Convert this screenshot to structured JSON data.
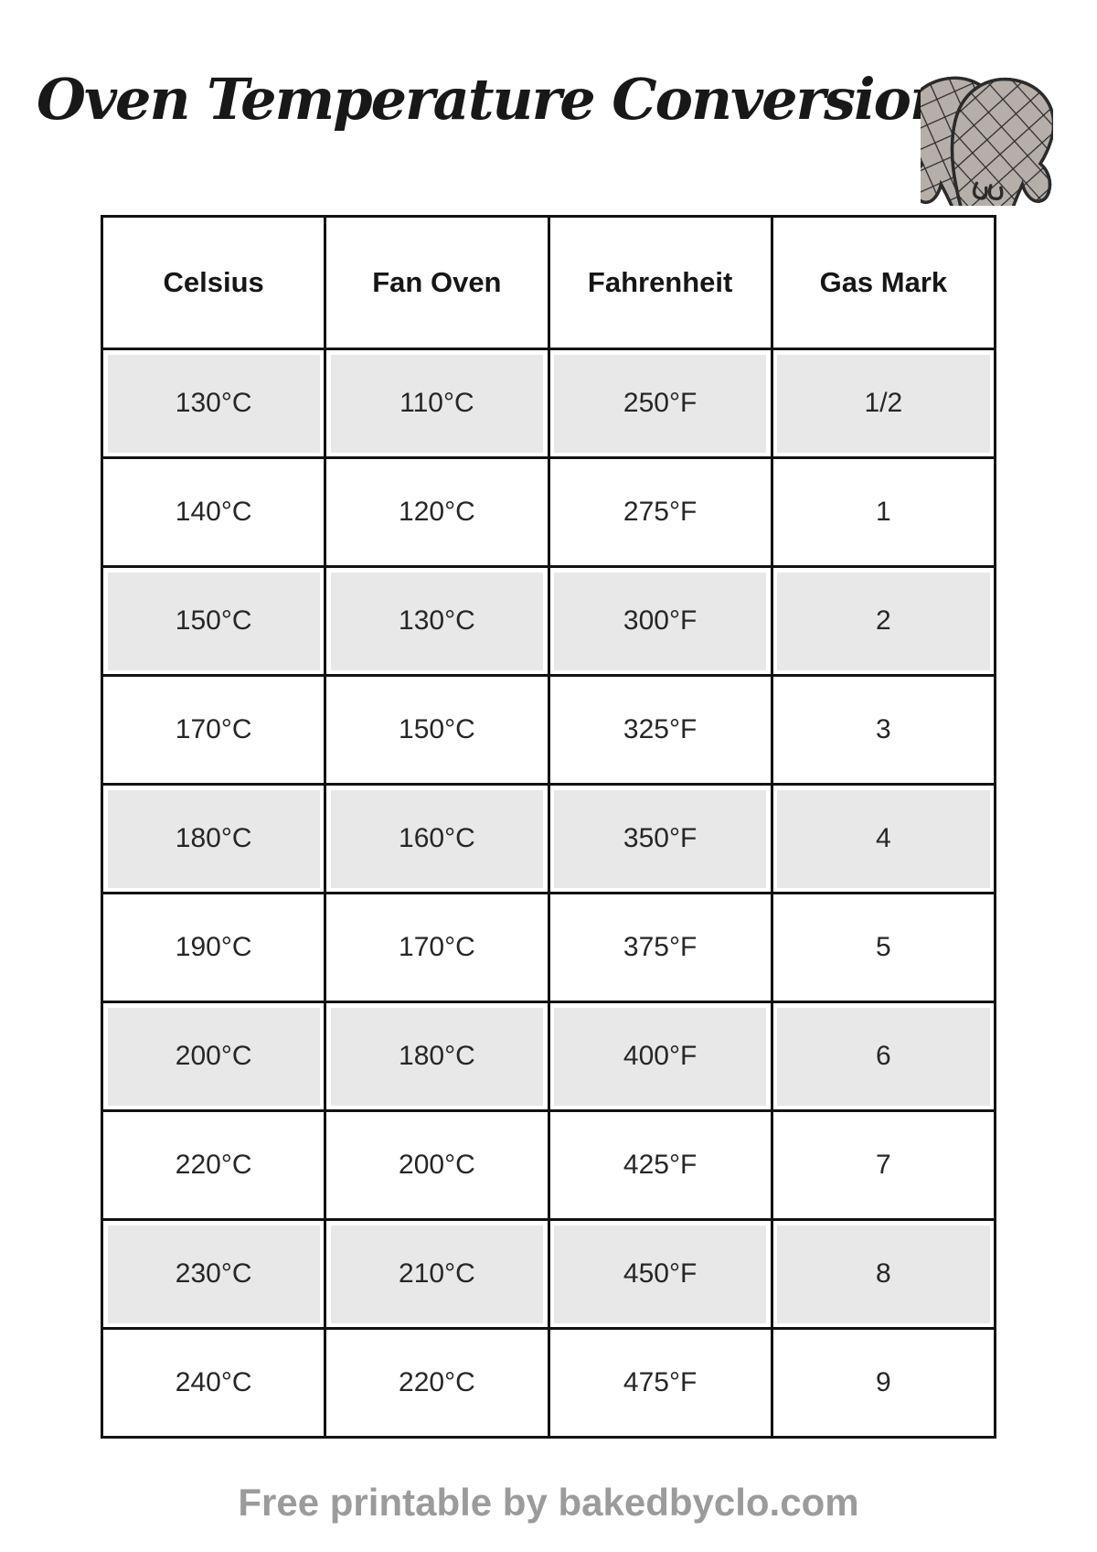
{
  "page": {
    "title": "Oven Temperature Conversion",
    "footer": "Free printable by bakedbyclo.com"
  },
  "icons": {
    "oven_mitts": "oven-mitts-icon"
  },
  "table": {
    "columns": [
      "Celsius",
      "Fan Oven",
      "Fahrenheit",
      "Gas Mark"
    ],
    "rows": [
      [
        "130°C",
        "110°C",
        "250°F",
        "1/2"
      ],
      [
        "140°C",
        "120°C",
        "275°F",
        "1"
      ],
      [
        "150°C",
        "130°C",
        "300°F",
        "2"
      ],
      [
        "170°C",
        "150°C",
        "325°F",
        "3"
      ],
      [
        "180°C",
        "160°C",
        "350°F",
        "4"
      ],
      [
        "190°C",
        "170°C",
        "375°F",
        "5"
      ],
      [
        "200°C",
        "180°C",
        "400°F",
        "6"
      ],
      [
        "220°C",
        "200°C",
        "425°F",
        "7"
      ],
      [
        "230°C",
        "210°C",
        "450°F",
        "8"
      ],
      [
        "240°C",
        "220°C",
        "475°F",
        "9"
      ]
    ]
  },
  "colors": {
    "row_stripe": "#e9e8e8",
    "table_border": "#121212",
    "footer_text": "#9b9b9b",
    "mitt_fill": "#b6afa9",
    "mitt_outline": "#2b2b2b"
  }
}
